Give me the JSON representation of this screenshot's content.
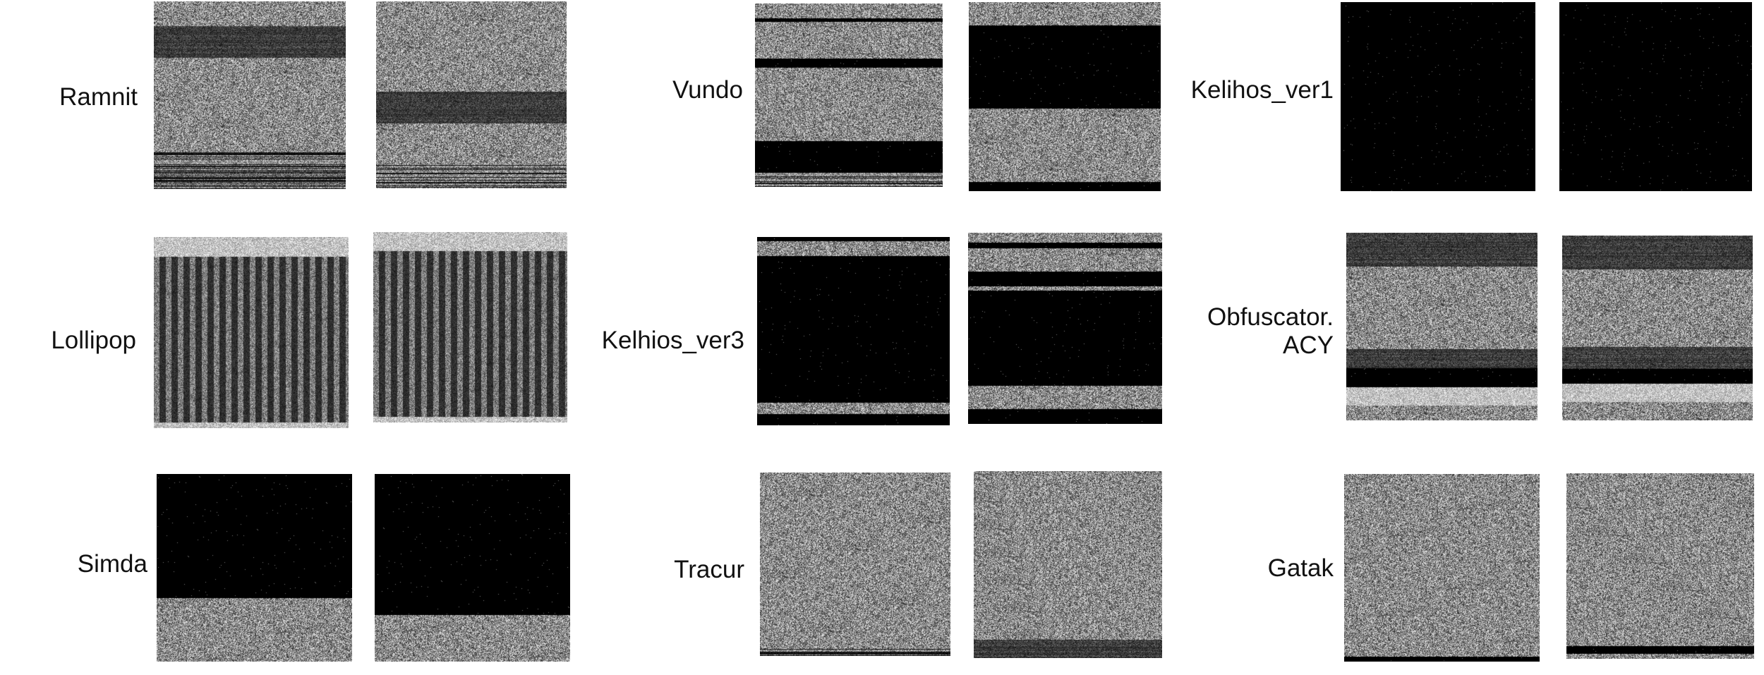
{
  "families": [
    {
      "key": "ramnit",
      "label": [
        "Ramnit"
      ]
    },
    {
      "key": "vundo",
      "label": [
        "Vundo"
      ]
    },
    {
      "key": "kelihos1",
      "label": [
        "Kelihos_ver1"
      ]
    },
    {
      "key": "lollipop",
      "label": [
        "Lollipop"
      ]
    },
    {
      "key": "kelihos3",
      "label": [
        "Kelhios_ver3"
      ]
    },
    {
      "key": "obfuscator",
      "label": [
        "Obfuscator.",
        "ACY"
      ]
    },
    {
      "key": "simda",
      "label": [
        "Simda"
      ]
    },
    {
      "key": "tracur",
      "label": [
        "Tracur"
      ]
    },
    {
      "key": "gatak",
      "label": [
        "Gatak"
      ]
    }
  ]
}
